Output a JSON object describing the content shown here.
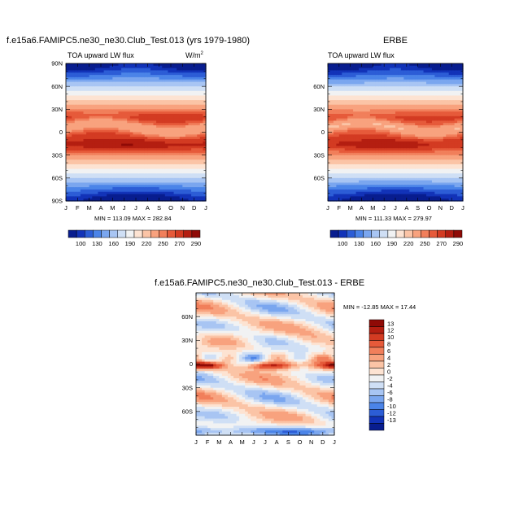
{
  "panels": [
    {
      "title": "f.e15a6.FAMIPC5.ne30_ne30.Club_Test.013 (yrs 1979-1980)",
      "subtitle": "TOA upward LW flux",
      "units": "W/m",
      "units_sup": "2",
      "minmax": "MIN = 113.09  MAX = 282.84"
    },
    {
      "title": "ERBE",
      "subtitle": "TOA upward LW flux",
      "units": "",
      "units_sup": "",
      "minmax": "MIN = 111.33  MAX = 279.97"
    },
    {
      "title": "f.e15a6.FAMIPC5.ne30_ne30.Club_Test.013 - ERBE",
      "subtitle": "",
      "units": "",
      "units_sup": "",
      "minmax": "MIN = -12.85  MAX =  17.44"
    }
  ],
  "chart_data": [
    {
      "type": "heatmap",
      "title": "f.e15a6.FAMIPC5.ne30_ne30.Club_Test.013 (yrs 1979-1980)",
      "subtitle": "TOA upward LW flux",
      "xlabel": "",
      "ylabel": "",
      "x_ticks": [
        "J",
        "F",
        "M",
        "A",
        "M",
        "J",
        "J",
        "A",
        "S",
        "O",
        "N",
        "D",
        "J"
      ],
      "y_ticks": [
        "90N",
        "60N",
        "30N",
        "0",
        "30S",
        "60S",
        "90S"
      ],
      "ylim": [
        -90,
        90
      ],
      "min": 113.09,
      "max": 282.84,
      "colorbar_levels": [
        100,
        130,
        160,
        190,
        220,
        250,
        270,
        290
      ],
      "colorbar_colors": [
        "#081d8f",
        "#1233b8",
        "#2c5dd6",
        "#4b84e8",
        "#7aa6ef",
        "#a8c5f3",
        "#cfdff5",
        "#f1f2f3",
        "#fde3d2",
        "#fbc4a6",
        "#f8a27e",
        "#f17f5b",
        "#e65a3a",
        "#d33b22",
        "#b41e11",
        "#8f0a06"
      ]
    },
    {
      "type": "heatmap",
      "title": "ERBE",
      "subtitle": "TOA upward LW flux",
      "xlabel": "",
      "ylabel": "",
      "x_ticks": [
        "J",
        "F",
        "M",
        "A",
        "M",
        "J",
        "J",
        "A",
        "S",
        "O",
        "N",
        "D",
        "J"
      ],
      "y_ticks": [
        "60N",
        "30N",
        "0",
        "30S",
        "60S"
      ],
      "ylim": [
        -90,
        90
      ],
      "min": 111.33,
      "max": 279.97,
      "colorbar_levels": [
        100,
        130,
        160,
        190,
        220,
        250,
        270,
        290
      ],
      "colorbar_colors": [
        "#081d8f",
        "#1233b8",
        "#2c5dd6",
        "#4b84e8",
        "#7aa6ef",
        "#a8c5f3",
        "#cfdff5",
        "#f1f2f3",
        "#fde3d2",
        "#fbc4a6",
        "#f8a27e",
        "#f17f5b",
        "#e65a3a",
        "#d33b22",
        "#b41e11",
        "#8f0a06"
      ]
    },
    {
      "type": "heatmap",
      "title": "f.e15a6.FAMIPC5.ne30_ne30.Club_Test.013 - ERBE",
      "xlabel": "",
      "ylabel": "",
      "x_ticks": [
        "J",
        "F",
        "M",
        "A",
        "M",
        "J",
        "J",
        "A",
        "S",
        "O",
        "N",
        "D",
        "J"
      ],
      "y_ticks": [
        "60N",
        "30N",
        "0",
        "30S",
        "60S"
      ],
      "ylim": [
        -90,
        90
      ],
      "min": -12.85,
      "max": 17.44,
      "colorbar_levels": [
        13,
        12,
        10,
        8,
        6,
        4,
        2,
        0,
        -2,
        -4,
        -6,
        -8,
        -10,
        -12,
        -13
      ],
      "colorbar_colors": [
        "#8f0a06",
        "#b41e11",
        "#d33b22",
        "#e65a3a",
        "#f17f5b",
        "#f8a27e",
        "#fbc4a6",
        "#fde3d2",
        "#f1f2f3",
        "#cfdff5",
        "#a8c5f3",
        "#7aa6ef",
        "#4b84e8",
        "#2c5dd6",
        "#1233b8",
        "#081d8f"
      ]
    }
  ]
}
